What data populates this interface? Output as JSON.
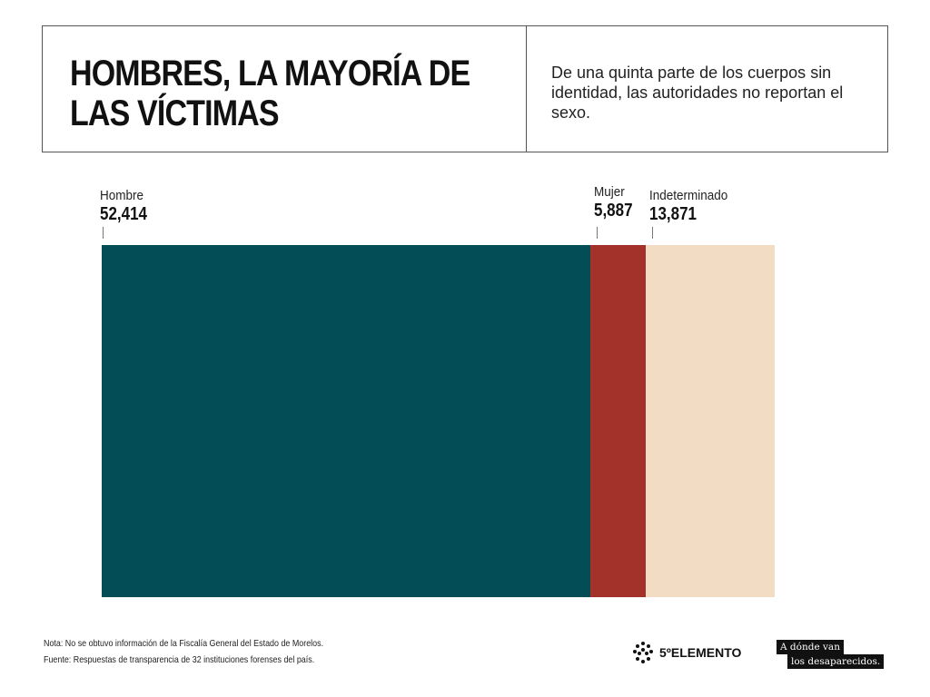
{
  "header": {
    "title": "HOMBRES, LA MAYORÍA DE LAS VÍCTIMAS",
    "subtitle": "De una quinta parte de los cuerpos sin identidad, las autoridades no reportan el sexo."
  },
  "chart_data": {
    "type": "bar",
    "orientation": "horizontal-stacked",
    "categories": [
      "Hombre",
      "Mujer",
      "Indeterminado"
    ],
    "values": [
      52414,
      5887,
      13871
    ],
    "value_labels": [
      "52,414",
      "5,887",
      "13,871"
    ],
    "colors": [
      "#034d56",
      "#a3322a",
      "#f3dcc4"
    ]
  },
  "footer": {
    "note": "Nota: No se obtuvo información de la Fiscalía General del Estado de Morelos.",
    "source": "Fuente: Respuestas de transparencia de 32 instituciones forenses del país.",
    "logo1": "5ºELEMENTO",
    "logo2_line1": "A dónde van",
    "logo2_line2": "los desaparecidos."
  }
}
